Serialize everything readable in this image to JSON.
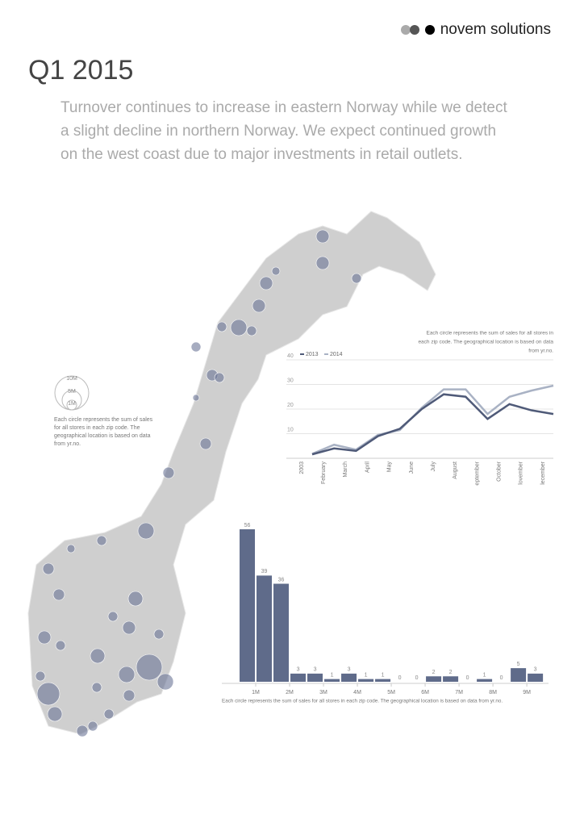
{
  "header": {
    "brand": "novem solutions"
  },
  "title": "Q1 2015",
  "intro": [
    "Turnover continues to increase in eastern Norway while we detect",
    "a slight decline in northern Norway. We expect continued growth",
    "on the west coast due to major investments in retail outlets."
  ],
  "map_legend": {
    "sizes": [
      "10M",
      "5M",
      "1M"
    ],
    "note": [
      "Each circle represents the sum of sales",
      "for all stores in each zip code. The",
      "geographical location is based on data",
      "from yr.no."
    ]
  },
  "chart_data": [
    {
      "type": "line",
      "annotation": [
        "Each circle represents the sum of sales for all stores in",
        "each zip code. The geographical location is based on data",
        "from yr.no."
      ],
      "categories": [
        "2003",
        "February",
        "March",
        "April",
        "May",
        "June",
        "July",
        "August",
        "eptember",
        "October",
        "lovember",
        "lecember"
      ],
      "series": [
        {
          "name": "2013",
          "color": "#4f5a78",
          "values": [
            1.6,
            4,
            3,
            9,
            12,
            20,
            26,
            25,
            16,
            22,
            19.5,
            18
          ]
        },
        {
          "name": "2014",
          "color": "#a9b2c4",
          "values": [
            1.8,
            5.5,
            3.5,
            9.5,
            11.5,
            20.5,
            28,
            28,
            18,
            25,
            27.5,
            29.5
          ]
        }
      ],
      "ylim": [
        0,
        40
      ],
      "yticks": [
        10,
        20,
        30,
        40
      ],
      "grid": true
    },
    {
      "type": "histogram",
      "caption": "Each circle represents the sum of sales for all stores in each zip code. The geographical location is based on data from yr.no.",
      "bins": [
        500000,
        1000000,
        1500000,
        2000000,
        2500000,
        3000000,
        3500000,
        4000000,
        4500000,
        5000000,
        5500000,
        6000000,
        6500000,
        7000000,
        7500000,
        8000000,
        8500000,
        9000000,
        9500000
      ],
      "values": [
        56,
        39,
        36,
        3,
        3,
        1,
        3,
        1,
        1,
        0,
        0,
        2,
        2,
        0,
        1,
        0,
        5,
        3
      ],
      "color": "#5f6b8a",
      "xlim": [
        0,
        9640000
      ],
      "xticks": [
        {
          "value": 1000000,
          "label": "1M"
        },
        {
          "value": 2000000,
          "label": "2M"
        },
        {
          "value": 3000000,
          "label": "3M"
        },
        {
          "value": 4000000,
          "label": "4M"
        },
        {
          "value": 5000000,
          "label": "5M"
        },
        {
          "value": 6000000,
          "label": "6M"
        },
        {
          "value": 7000000,
          "label": "7M"
        },
        {
          "value": 8000000,
          "label": "8M"
        },
        {
          "value": 9000000,
          "label": "9M"
        }
      ],
      "ylim": [
        0,
        56
      ]
    }
  ]
}
